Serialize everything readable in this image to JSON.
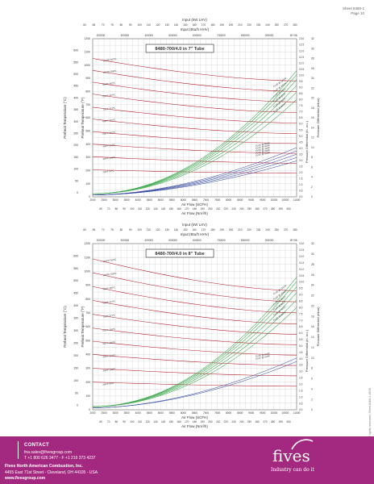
{
  "sheet": {
    "number": "Sheet 8480-1",
    "page": "Page 10"
  },
  "chart_data": [
    {
      "type": "line",
      "title": "8480-700/4.0 in 7\" Tube",
      "top_axis_1": {
        "label": "Input (kW LHV)",
        "ticks": [
          "60",
          "65",
          "70",
          "75",
          "80",
          "90",
          "100",
          "110",
          "120",
          "130",
          "140",
          "150",
          "160",
          "170",
          "180",
          "190",
          "200",
          "210",
          "220",
          "230",
          "240",
          "250",
          "270",
          "280"
        ]
      },
      "top_axis_2": {
        "label": "Input (Btu/h HHV)",
        "ticks": [
          "200000",
          "300000",
          "400000",
          "500000",
          "600000",
          "700000",
          "800000",
          "900000",
          "1E+06"
        ]
      },
      "bottom_axis_1": {
        "label": "Air Flow (SCFH)",
        "ticks": [
          "2000",
          "2500",
          "3000",
          "3500",
          "4000",
          "4500",
          "5000",
          "5500",
          "6000",
          "6500",
          "7000",
          "7500",
          "8000",
          "8500",
          "9000",
          "9500",
          "10000",
          "10500",
          "11000"
        ]
      },
      "bottom_axis_2": {
        "label": "Air Flow (Nm³/h)",
        "ticks": [
          "60",
          "70",
          "80",
          "90",
          "100",
          "110",
          "120",
          "130",
          "140",
          "150",
          "160",
          "170",
          "180",
          "190",
          "200",
          "210",
          "220",
          "230",
          "240",
          "250",
          "260",
          "270",
          "280",
          "290",
          "300"
        ]
      },
      "left_axis_c": {
        "label": "Preheat Temperature (°C)",
        "ticks": [
          "0",
          "50",
          "100",
          "150",
          "200",
          "250",
          "300",
          "350",
          "400",
          "450",
          "500",
          "550",
          "600",
          "650"
        ]
      },
      "left_axis_f": {
        "label": "Preheat Temperature (°F)",
        "ticks": [
          "0",
          "100",
          "200",
          "300",
          "400",
          "500",
          "600",
          "700",
          "800",
          "900",
          "1000",
          "1100",
          "1200"
        ]
      },
      "right_axis_inwc": {
        "label": "Pressure Differential (in. w.c.)",
        "ticks": [
          "0.0",
          "0.5",
          "1.0",
          "1.5",
          "2.0",
          "2.5",
          "3.0",
          "3.5",
          "4.0",
          "4.5",
          "5.0",
          "5.5",
          "6.0",
          "6.5",
          "7.0",
          "7.5",
          "8.0",
          "8.5",
          "9.0",
          "9.5",
          "10.0",
          "10.5",
          "11.0",
          "11.5",
          "12.0",
          "12.5",
          "13.0"
        ]
      },
      "right_axis_mbar": {
        "label": "Pressure Differential (mbar)",
        "ticks": [
          "0",
          "2",
          "4",
          "6",
          "8",
          "10",
          "12",
          "14",
          "16",
          "18",
          "20",
          "22",
          "24",
          "26",
          "28",
          "30",
          "32"
        ]
      },
      "xlim": [
        2000,
        11000
      ],
      "ylim": [
        0,
        1200
      ],
      "temp_lines": [
        {
          "name": "1100ºF  593ºC",
          "f": 1100,
          "start": 1050,
          "end": 880
        },
        {
          "name": "1000ºF  538ºC",
          "f": 1000,
          "start": 960,
          "end": 800
        },
        {
          "name": "900ºF  482ºC",
          "f": 900,
          "start": 870,
          "end": 720
        },
        {
          "name": "800ºF  427ºC",
          "f": 800,
          "start": 780,
          "end": 640
        },
        {
          "name": "700ºF  371ºC",
          "f": 700,
          "start": 680,
          "end": 560
        },
        {
          "name": "600ºF  316ºC",
          "f": 600,
          "start": 590,
          "end": 480
        },
        {
          "name": "500ºF  260ºC",
          "f": 500,
          "start": 495,
          "end": 405
        },
        {
          "name": "400ºF  204ºC",
          "f": 400,
          "start": 400,
          "end": 330
        },
        {
          "name": "300ºF  149ºC",
          "f": 300,
          "start": 305,
          "end": 255
        },
        {
          "name": "200ºF  93ºC",
          "f": 200,
          "start": 205,
          "end": 180
        }
      ],
      "green_labels": [
        "FLUE  @ 1100ºF",
        "FLUE  @ 1000ºF",
        "FLUE  @ 900ºF",
        "FLUE  @ 800ºF",
        "FLUE  @ 700ºF",
        "FLUE  @ 600ºF"
      ],
      "blue_labels": [
        "FLUE  @ 500ºF",
        "FLUE  @ 400ºF",
        "FLUE  @ 300ºF",
        "FLUE  @ 200ºF",
        "FLUE  @ 100ºF"
      ]
    },
    {
      "type": "line",
      "title": "8480-700/4.0 in 8\" Tube",
      "top_axis_1": {
        "label": "Input (kW LHV)",
        "ticks": [
          "60",
          "65",
          "70",
          "75",
          "80",
          "90",
          "100",
          "110",
          "120",
          "130",
          "140",
          "150",
          "160",
          "170",
          "180",
          "190",
          "200",
          "210",
          "220",
          "230",
          "240",
          "250",
          "270",
          "280"
        ]
      },
      "top_axis_2": {
        "label": "Input (Btu/h HHV)",
        "ticks": [
          "200000",
          "300000",
          "400000",
          "500000",
          "600000",
          "700000",
          "800000",
          "900000",
          "1E+06"
        ]
      },
      "bottom_axis_1": {
        "label": "Air Flow (SCFH)",
        "ticks": [
          "2000",
          "2500",
          "3000",
          "3500",
          "4000",
          "4500",
          "5000",
          "5500",
          "6000",
          "6500",
          "7000",
          "7500",
          "8000",
          "8500",
          "9000",
          "9500",
          "10000",
          "10500",
          "11000"
        ]
      },
      "bottom_axis_2": {
        "label": "Air Flow (Nm³/h)",
        "ticks": [
          "60",
          "70",
          "80",
          "90",
          "100",
          "110",
          "120",
          "130",
          "140",
          "150",
          "160",
          "170",
          "180",
          "190",
          "200",
          "210",
          "220",
          "230",
          "240",
          "250",
          "260",
          "270",
          "280",
          "290",
          "300"
        ]
      },
      "left_axis_c": {
        "label": "Preheat Temperature (°C)",
        "ticks": [
          "0",
          "50",
          "100",
          "150",
          "200",
          "250",
          "300",
          "350",
          "400",
          "450",
          "500",
          "550",
          "600",
          "650"
        ]
      },
      "left_axis_f": {
        "label": "Preheat Temperature (°F)",
        "ticks": [
          "0",
          "100",
          "200",
          "300",
          "400",
          "500",
          "600",
          "700",
          "800",
          "900",
          "1000",
          "1100",
          "1200"
        ]
      },
      "right_axis_inwc": {
        "label": "Pressure Differential (in. w.c.)",
        "ticks": [
          "0.0",
          "0.5",
          "1.0",
          "1.5",
          "2.0",
          "2.5",
          "3.0",
          "3.5",
          "4.0",
          "4.5",
          "5.0",
          "5.5",
          "6.0",
          "6.5",
          "7.0",
          "7.5",
          "8.0",
          "8.5",
          "9.0",
          "9.5",
          "10.0",
          "10.5",
          "11.0",
          "11.5",
          "12.0",
          "12.5",
          "13.0"
        ]
      },
      "right_axis_mbar": {
        "label": "Pressure Differential (mbar)",
        "ticks": [
          "0",
          "2",
          "4",
          "6",
          "8",
          "10",
          "12",
          "14",
          "16",
          "18",
          "20",
          "22",
          "24",
          "26",
          "28",
          "30",
          "32"
        ]
      },
      "xlim": [
        2000,
        11000
      ],
      "ylim": [
        0,
        1200
      ],
      "temp_lines": [
        {
          "name": "1100ºF  593ºC",
          "f": 1100,
          "start": 1090,
          "end": 860
        },
        {
          "name": "1000ºF  538ºC",
          "f": 1000,
          "start": 990,
          "end": 780
        },
        {
          "name": "900ºF  482ºC",
          "f": 900,
          "start": 890,
          "end": 700
        },
        {
          "name": "800ºF  427ºC",
          "f": 800,
          "start": 790,
          "end": 620
        },
        {
          "name": "700ºF  371ºC",
          "f": 700,
          "start": 690,
          "end": 545
        },
        {
          "name": "600ºF  316ºC",
          "f": 600,
          "start": 590,
          "end": 470
        },
        {
          "name": "500ºF  260ºC",
          "f": 500,
          "start": 495,
          "end": 395
        },
        {
          "name": "400ºF  204ºC",
          "f": 400,
          "start": 400,
          "end": 320
        },
        {
          "name": "300ºF  149ºC",
          "f": 300,
          "start": 300,
          "end": 245
        },
        {
          "name": "200ºF  93ºC",
          "f": 200,
          "start": 200,
          "end": 170
        }
      ],
      "green_labels": [
        "FLUE  @ 1100ºF",
        "FLUE  @ 1000ºF",
        "FLUE  @ 900ºF",
        "FLUE  @ 800ºF",
        "FLUE  @ 700ºF",
        "FLUE  @ 600ºF"
      ],
      "blue_labels": [
        "FLUE  @ 200ºF",
        "FLUE  @ 100ºF"
      ]
    }
  ],
  "colors": {
    "temp": "#b51d2a",
    "green": "#3aa64a",
    "blue": "#2a3f9b",
    "grid": "#bbbbbb",
    "footer": "#a3287f"
  },
  "copyright": "Copyright © 2010 - Fives - All rights reserved | Sheet 8480-1 10/10",
  "footer": {
    "contact_title": "CONTACT",
    "email": "fna.sales@fivesgroup.com",
    "phone": "T +1 800 626 3477 - F +1 216 373 4237",
    "company": "Fives North American Combustion, Inc.",
    "address": "4455 East 71st Street - Cleveland, OH 44105 - USA",
    "web": "www.fivesgroup.com",
    "logo": "fives",
    "tagline": "Industry can do it"
  }
}
